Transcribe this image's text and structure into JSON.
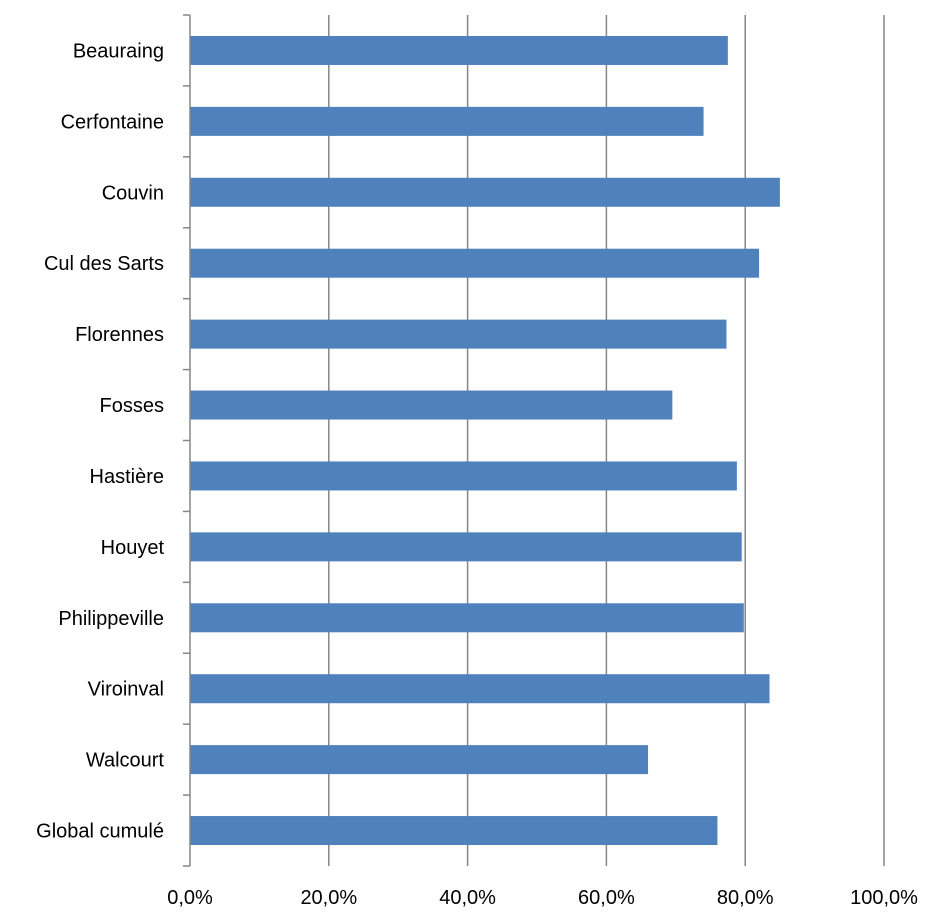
{
  "chart_data": {
    "type": "bar",
    "orientation": "horizontal",
    "categories": [
      "Beauraing",
      "Cerfontaine",
      "Couvin",
      "Cul des Sarts",
      "Florennes",
      "Fosses",
      "Hastière",
      "Houyet",
      "Philippeville",
      "Viroinval",
      "Walcourt",
      "Global cumulé"
    ],
    "values": [
      77.5,
      74.0,
      85.0,
      82.0,
      77.3,
      69.5,
      78.8,
      79.5,
      79.8,
      83.5,
      66.0,
      76.0
    ],
    "title": "",
    "xlabel": "",
    "ylabel": "",
    "xlim": [
      0,
      100
    ],
    "xticks": [
      0,
      20,
      40,
      60,
      80,
      100
    ],
    "xtick_labels": [
      "0,0%",
      "20,0%",
      "40,0%",
      "60,0%",
      "80,0%",
      "100,0%"
    ],
    "grid": "vertical",
    "legend": "none",
    "bar_color": "#4F81BD",
    "grid_color": "#868686",
    "axis_color": "#868686"
  }
}
